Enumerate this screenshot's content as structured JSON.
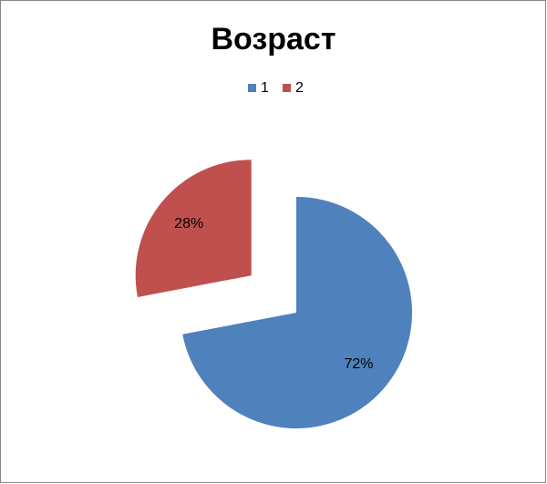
{
  "chart_data": {
    "type": "pie",
    "title": "Возраст",
    "categories": [
      "1",
      "2"
    ],
    "values": [
      72,
      28
    ],
    "value_labels": [
      "72%",
      "28%"
    ],
    "colors": [
      "#4f81bd",
      "#c0504d"
    ],
    "legend": "top"
  }
}
